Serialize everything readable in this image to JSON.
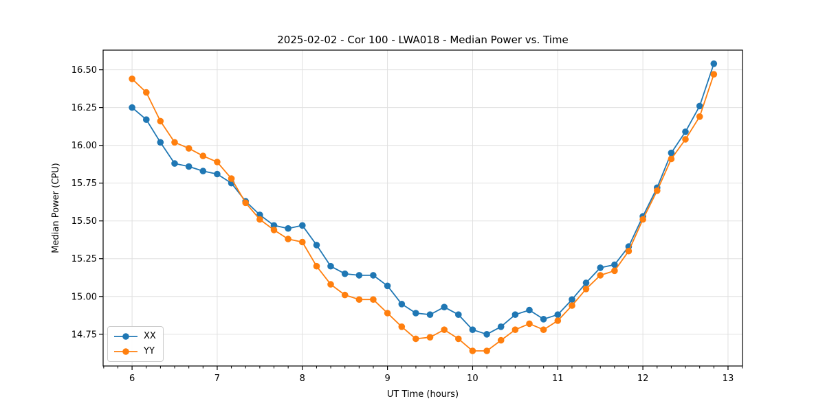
{
  "chart_data": {
    "type": "line",
    "title": "2025-02-02 - Cor 100 - LWA018 - Median Power vs. Time",
    "xlabel": "UT Time (hours)",
    "ylabel": "Median Power (CPU)",
    "xlim": [
      5.66,
      13.17
    ],
    "ylim": [
      14.54,
      16.63
    ],
    "xticks": [
      6,
      7,
      8,
      9,
      10,
      11,
      12,
      13
    ],
    "yticks": [
      14.75,
      15.0,
      15.25,
      15.5,
      15.75,
      16.0,
      16.25,
      16.5
    ],
    "minor_xtick_step": 0.16667,
    "grid": true,
    "legend_position": "lower left",
    "axis_color": "#000000",
    "grid_color": "#e0e0e0",
    "x": [
      6.0,
      6.167,
      6.333,
      6.5,
      6.667,
      6.833,
      7.0,
      7.167,
      7.333,
      7.5,
      7.667,
      7.833,
      8.0,
      8.167,
      8.333,
      8.5,
      8.667,
      8.833,
      9.0,
      9.167,
      9.333,
      9.5,
      9.667,
      9.833,
      10.0,
      10.167,
      10.333,
      10.5,
      10.667,
      10.833,
      11.0,
      11.167,
      11.333,
      11.5,
      11.667,
      11.833,
      12.0,
      12.167,
      12.333,
      12.5,
      12.667,
      12.833
    ],
    "series": [
      {
        "name": "XX",
        "color": "#1f77b4",
        "values": [
          16.25,
          16.17,
          16.02,
          15.88,
          15.86,
          15.83,
          15.81,
          15.75,
          15.63,
          15.54,
          15.47,
          15.45,
          15.47,
          15.34,
          15.2,
          15.15,
          15.14,
          15.14,
          15.07,
          14.95,
          14.89,
          14.88,
          14.93,
          14.88,
          14.78,
          14.75,
          14.8,
          14.88,
          14.91,
          14.85,
          14.88,
          14.98,
          15.09,
          15.19,
          15.21,
          15.33,
          15.53,
          15.72,
          15.95,
          16.09,
          16.26,
          16.54
        ]
      },
      {
        "name": "YY",
        "color": "#ff7f0e",
        "values": [
          16.44,
          16.35,
          16.16,
          16.02,
          15.98,
          15.93,
          15.89,
          15.78,
          15.62,
          15.51,
          15.44,
          15.38,
          15.36,
          15.2,
          15.08,
          15.01,
          14.98,
          14.98,
          14.89,
          14.8,
          14.72,
          14.73,
          14.78,
          14.72,
          14.64,
          14.64,
          14.71,
          14.78,
          14.82,
          14.78,
          14.84,
          14.94,
          15.05,
          15.14,
          15.17,
          15.3,
          15.51,
          15.7,
          15.91,
          16.04,
          16.19,
          16.47
        ]
      }
    ]
  }
}
